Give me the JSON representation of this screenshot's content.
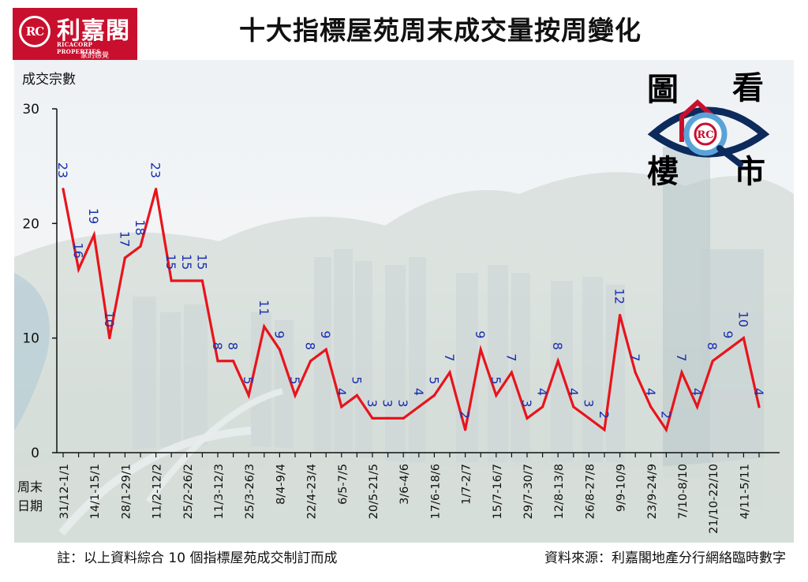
{
  "header": {
    "logo_name": "利嘉閣",
    "logo_mark": "RC",
    "logo_en": "RICACORP PROPERTIES",
    "logo_tagline": "家的感覺",
    "title": "十大指標屋苑周末成交量按周變化"
  },
  "badge": {
    "chars": [
      "圖",
      "看",
      "樓",
      "市"
    ],
    "mark": "RC",
    "icon": "eye-magnifier-icon"
  },
  "x_header": [
    "周末",
    "日期"
  ],
  "footer": {
    "note": "註：以上資料綜合 10 個指標屋苑成交制訂而成",
    "source": "資料來源：利嘉閣地產分行網絡臨時數字"
  },
  "colors": {
    "line": "#e8141c",
    "label": "#1a2fb0",
    "logo": "#c8102e",
    "axis": "#111111"
  },
  "chart_data": {
    "type": "line",
    "title": "十大指標屋苑周末成交量按周變化",
    "ylabel": "成交宗數",
    "ylim": [
      0,
      30
    ],
    "yticks": [
      0,
      10,
      20,
      30
    ],
    "grid": false,
    "x": [
      "31/12-1/1",
      "",
      "14/1-15/1",
      "",
      "28/1-29/1",
      "",
      "11/2-12/2",
      "",
      "25/2-26/2",
      "",
      "11/3-12/3",
      "",
      "25/3-26/3",
      "",
      "8/4-9/4",
      "",
      "22/4-23/4",
      "",
      "6/5-7/5",
      "",
      "20/5-21/5",
      "",
      "3/6-4/6",
      "",
      "17/6-18/6",
      "",
      "1/7-2/7",
      "",
      "15/7-16/7",
      "",
      "29/7-30/7",
      "",
      "12/8-13/8",
      "",
      "26/8-27/8",
      "",
      "9/9-10/9",
      "",
      "23/9-24/9",
      "",
      "7/10-8/10",
      "",
      "21/10-22/10",
      "",
      "4/11-5/11",
      ""
    ],
    "values": [
      23,
      16,
      19,
      10,
      17,
      18,
      23,
      15,
      15,
      15,
      8,
      8,
      5,
      11,
      9,
      5,
      8,
      9,
      4,
      5,
      3,
      3,
      3,
      4,
      5,
      7,
      2,
      9,
      5,
      7,
      3,
      4,
      8,
      4,
      3,
      2,
      12,
      7,
      4,
      2,
      7,
      4,
      8,
      9,
      10,
      4
    ]
  }
}
